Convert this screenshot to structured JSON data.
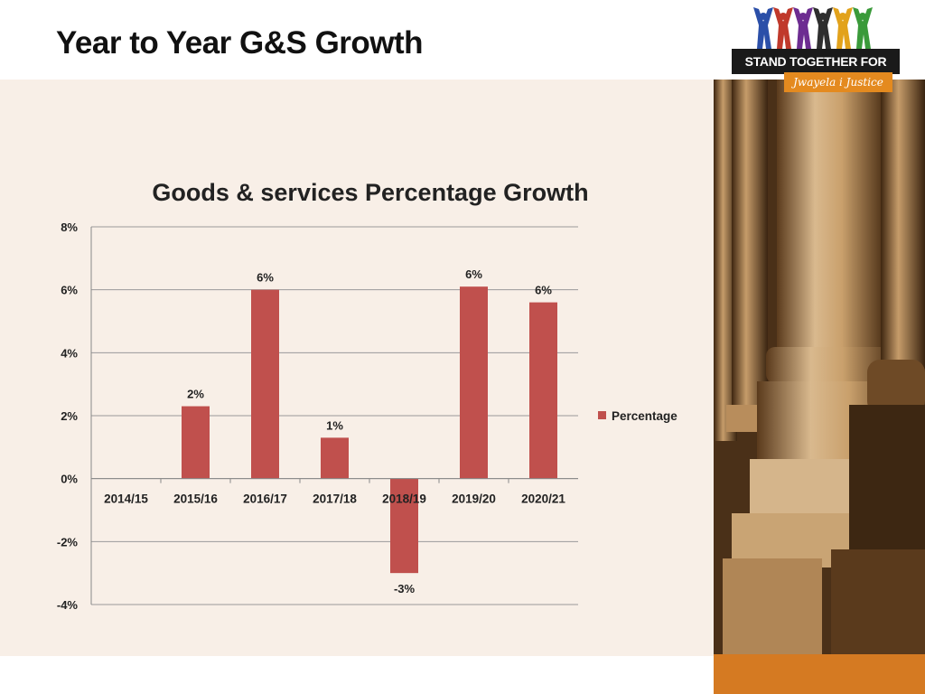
{
  "slide": {
    "title": "Year to Year G&S Growth"
  },
  "logo": {
    "main_text": "STAND TOGETHER FOR RIGHTS",
    "sub_text": "Jwayela i Justice",
    "figure_colors": [
      "#2b4fa8",
      "#c0392b",
      "#6d2c91",
      "#2e2e2e",
      "#e2a21b",
      "#3a9a3a"
    ]
  },
  "colors": {
    "bar": "#c0504d",
    "panel": "#f8efe7",
    "accent_orange": "#d57a22"
  },
  "chart_data": {
    "type": "bar",
    "title": "Goods & services Percentage Growth",
    "categories": [
      "2014/15",
      "2015/16",
      "2016/17",
      "2017/18",
      "2018/19",
      "2019/20",
      "2020/21"
    ],
    "series": [
      {
        "name": "Percentage",
        "values": [
          0,
          2.3,
          6.0,
          1.3,
          -3.0,
          6.1,
          5.6
        ],
        "labels": [
          "",
          "2%",
          "6%",
          "1%",
          "-3%",
          "6%",
          "6%"
        ]
      }
    ],
    "ylim": [
      -4,
      8
    ],
    "yticks": [
      -4,
      -2,
      0,
      2,
      4,
      6,
      8
    ],
    "ytick_labels": [
      "-4%",
      "-2%",
      "0%",
      "2%",
      "4%",
      "6%",
      "8%"
    ],
    "grid": true,
    "legend": "right"
  }
}
